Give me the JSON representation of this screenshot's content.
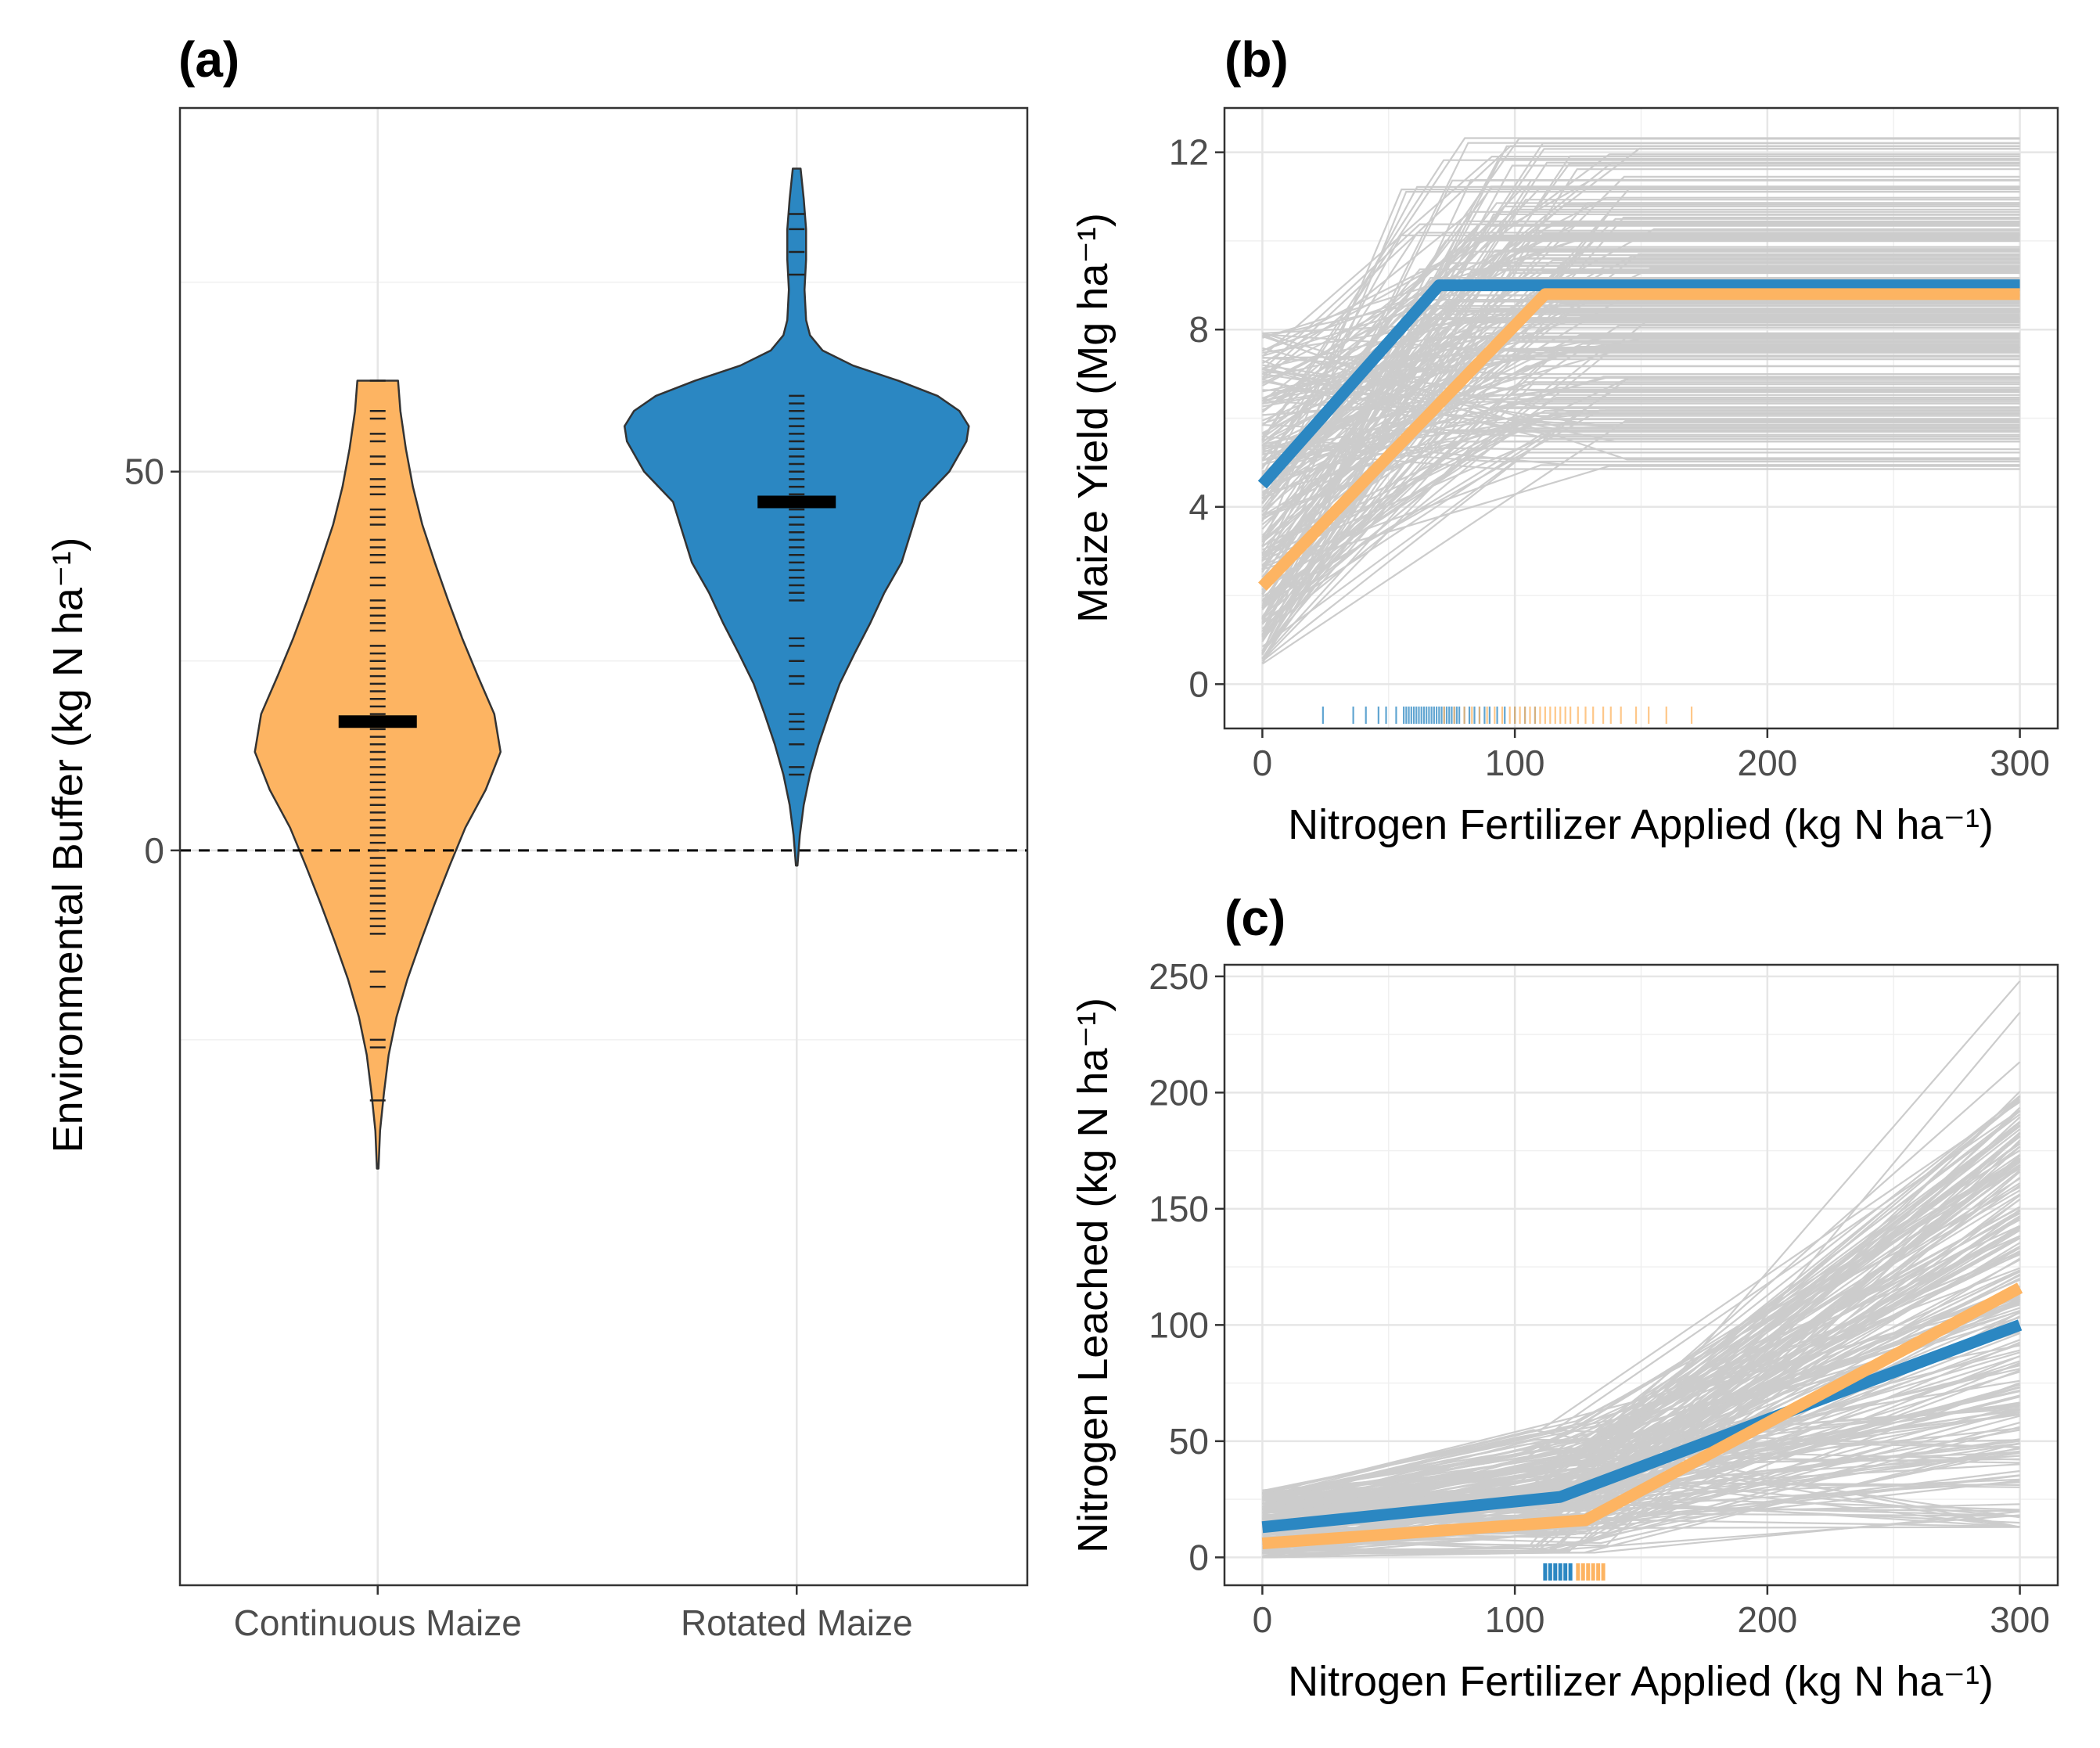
{
  "chart_data": [
    {
      "panel": "(a)",
      "type": "violin",
      "ylabel": "Environmental Buffer (kg N ha⁻¹)",
      "ylim": [
        -97,
        98
      ],
      "yticks": [
        0,
        50
      ],
      "categories": [
        "Continuous Maize",
        "Rotated Maize"
      ],
      "colors": [
        "#fdb462",
        "#2b87c2"
      ],
      "reference_line": 0,
      "series": [
        {
          "values": [
            62,
            58,
            57,
            55,
            54,
            52,
            51,
            49,
            48,
            47,
            45,
            44,
            43,
            41,
            40,
            39,
            38,
            36,
            35,
            33,
            32,
            31,
            30,
            29,
            27,
            26,
            25,
            25,
            24,
            23,
            22,
            21,
            20,
            19,
            18,
            17,
            16,
            15,
            14,
            13,
            12,
            11,
            10,
            9,
            8,
            7,
            6,
            5,
            4,
            3,
            2,
            1,
            0,
            -1,
            -2,
            -3,
            -4,
            -5,
            -6,
            -7,
            -8,
            -9,
            -10,
            -11,
            -16,
            -18,
            -25,
            -26,
            -33
          ],
          "median": 17
        },
        {
          "values": [
            84,
            82,
            79,
            76,
            60,
            59,
            58,
            57,
            56,
            55,
            54,
            53,
            52,
            51,
            50,
            49,
            48,
            47,
            46,
            45,
            44,
            43,
            42,
            41,
            40,
            39,
            38,
            37,
            36,
            35,
            34,
            33,
            28,
            27,
            25,
            23,
            22,
            18,
            17,
            16,
            14,
            11,
            10
          ],
          "median": 46
        }
      ],
      "density": [
        {
          "y": [
            -42,
            -37,
            -32,
            -27,
            -22,
            -17,
            -12,
            -7,
            -2,
            3,
            8,
            13,
            18,
            23,
            28,
            33,
            38,
            43,
            48,
            53,
            58,
            62
          ],
          "w": [
            1,
            3,
            8,
            14,
            24,
            38,
            55,
            73,
            92,
            112,
            138,
            157,
            149,
            128,
            108,
            90,
            73,
            57,
            45,
            36,
            29,
            26
          ]
        },
        {
          "y": [
            -2,
            2,
            6,
            10,
            14,
            18,
            22,
            26,
            30,
            34,
            38,
            42,
            46,
            50,
            54,
            56,
            58,
            60,
            62,
            64,
            66,
            68,
            70,
            74,
            78,
            82,
            86,
            90
          ],
          "w": [
            1,
            4,
            9,
            17,
            28,
            41,
            55,
            74,
            94,
            112,
            134,
            146,
            158,
            195,
            217,
            220,
            208,
            180,
            130,
            72,
            33,
            17,
            12,
            10,
            12,
            12,
            9,
            5
          ]
        }
      ]
    },
    {
      "panel": "(b)",
      "type": "line",
      "xlabel": "Nitrogen Fertilizer Applied (kg N ha⁻¹)",
      "ylabel": "Maize Yield (Mg ha⁻¹)",
      "xlim": [
        -15,
        315
      ],
      "ylim": [
        -1,
        13
      ],
      "xticks": [
        0,
        100,
        200,
        300
      ],
      "yticks": [
        0,
        4,
        8,
        12
      ],
      "series": [
        {
          "color": "#2b87c2",
          "x": [
            0,
            70,
            300
          ],
          "y": [
            4.5,
            9.0,
            9.0
          ]
        },
        {
          "color": "#fdb462",
          "x": [
            0,
            112,
            300
          ],
          "y": [
            2.2,
            8.8,
            8.8
          ]
        }
      ],
      "rug": [
        {
          "color": "#2b87c2",
          "x": [
            24,
            36,
            41,
            46,
            49,
            53,
            56,
            57,
            58,
            59,
            60,
            61,
            62,
            63,
            64,
            65,
            66,
            67,
            68,
            69,
            70,
            71,
            72,
            73,
            74,
            75,
            76,
            77,
            78,
            80,
            82,
            84,
            86,
            88,
            90,
            93,
            96,
            100,
            104,
            108
          ]
        },
        {
          "color": "#fdb462",
          "x": [
            72,
            76,
            80,
            83,
            86,
            89,
            92,
            95,
            98,
            100,
            102,
            104,
            106,
            108,
            110,
            112,
            114,
            116,
            118,
            120,
            122,
            125,
            128,
            131,
            135,
            138,
            142,
            148,
            153,
            160,
            170
          ]
        }
      ]
    },
    {
      "panel": "(c)",
      "type": "line",
      "xlabel": "Nitrogen Fertilizer Applied (kg N ha⁻¹)",
      "ylabel": "Nitrogen Leached (kg N ha⁻¹)",
      "xlim": [
        -15,
        315
      ],
      "ylim": [
        -12,
        255
      ],
      "xticks": [
        0,
        100,
        200,
        300
      ],
      "yticks": [
        0,
        50,
        100,
        150,
        200,
        250
      ],
      "series": [
        {
          "color": "#2b87c2",
          "x": [
            0,
            118,
            300
          ],
          "y": [
            13,
            26,
            100
          ]
        },
        {
          "color": "#fdb462",
          "x": [
            0,
            128,
            300
          ],
          "y": [
            6,
            16,
            116
          ]
        }
      ],
      "rug": [
        {
          "color": "#2b87c2",
          "x": [
            112,
            114,
            116,
            118,
            120,
            122
          ]
        },
        {
          "color": "#fdb462",
          "x": [
            125,
            127,
            129,
            131,
            133,
            135
          ]
        }
      ]
    }
  ]
}
